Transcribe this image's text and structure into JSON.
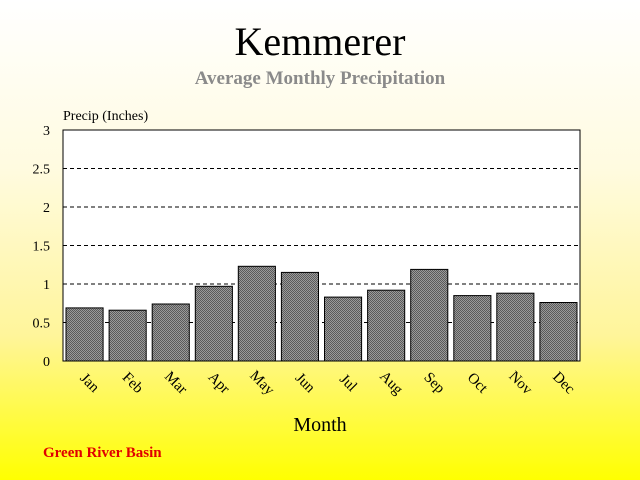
{
  "chart_data": {
    "type": "bar",
    "title": "Kemmerer",
    "subtitle": "Average Monthly Precipitation",
    "xlabel": "Month",
    "ylabel": "Precip (Inches)",
    "categories": [
      "Jan",
      "Feb",
      "Mar",
      "Apr",
      "May",
      "Jun",
      "Jul",
      "Aug",
      "Sep",
      "Oct",
      "Nov",
      "Dec"
    ],
    "values": [
      0.69,
      0.66,
      0.74,
      0.97,
      1.23,
      1.15,
      0.83,
      0.92,
      1.19,
      0.85,
      0.88,
      0.76
    ],
    "ylim": [
      0,
      3
    ],
    "yticks": [
      "0",
      "0.5",
      "1",
      "1.5",
      "2",
      "2.5",
      "3"
    ],
    "ytick_values": [
      0,
      0.5,
      1,
      1.5,
      2,
      2.5,
      3
    ],
    "grid": true,
    "legend": "none",
    "colors": {
      "bar_fill": "#888888",
      "bar_stroke": "#000000",
      "plot_background": "#ffffff",
      "subtitle": "#8a8a8a",
      "footer": "#e00000"
    }
  },
  "footer": "Green River Basin"
}
